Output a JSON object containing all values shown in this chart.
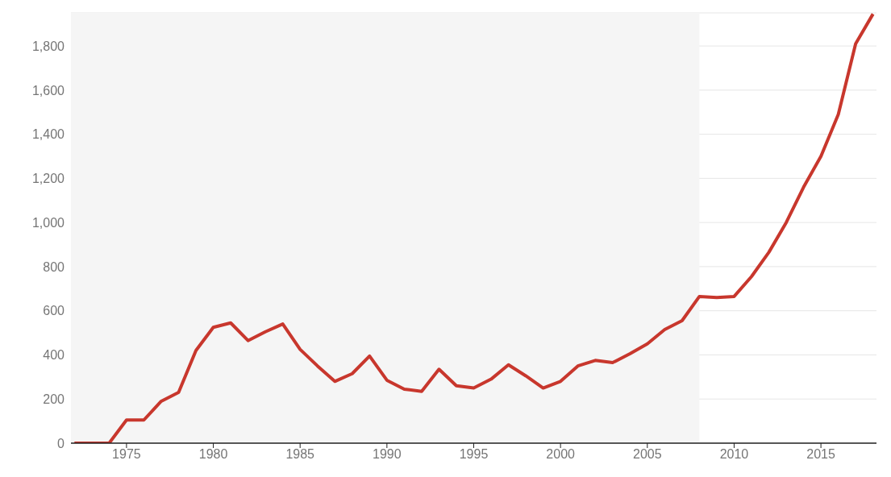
{
  "chart_data": {
    "type": "line",
    "x": [
      1972,
      1973,
      1974,
      1975,
      1976,
      1977,
      1978,
      1979,
      1980,
      1981,
      1982,
      1983,
      1984,
      1985,
      1986,
      1987,
      1988,
      1989,
      1990,
      1991,
      1992,
      1993,
      1994,
      1995,
      1996,
      1997,
      1998,
      1999,
      2000,
      2001,
      2002,
      2003,
      2004,
      2005,
      2006,
      2007,
      2008,
      2009,
      2010,
      2011,
      2012,
      2013,
      2014,
      2015,
      2016,
      2017,
      2018
    ],
    "series": [
      {
        "color": "#c8372d",
        "values": [
          0,
          0,
          0,
          105,
          105,
          190,
          230,
          420,
          525,
          545,
          465,
          505,
          540,
          425,
          350,
          280,
          315,
          395,
          285,
          245,
          235,
          335,
          260,
          250,
          290,
          355,
          305,
          250,
          280,
          350,
          375,
          365,
          405,
          450,
          515,
          555,
          665,
          660,
          665,
          755,
          865,
          1000,
          1160,
          1300,
          1490,
          1810,
          1945
        ]
      }
    ],
    "xlim": [
      1971.8,
      2018.2
    ],
    "xticks": [
      1975,
      1980,
      1985,
      1990,
      1995,
      2000,
      2005,
      2010,
      2015
    ],
    "ylim": [
      0,
      1950
    ],
    "yticks": [
      0,
      200,
      400,
      600,
      800,
      {
        "value": 1000,
        "label": "1,000"
      },
      {
        "value": 1200,
        "label": "1,200"
      },
      {
        "value": 1400,
        "label": "1,400"
      },
      {
        "value": 1600,
        "label": "1,600"
      },
      {
        "value": 1800,
        "label": "1,800"
      }
    ],
    "grid": "y",
    "marker": "none",
    "line_style": "solid",
    "bands": [
      {
        "axis": "x",
        "from": 1971.8,
        "to": 2008,
        "color": "#f5f5f5"
      }
    ]
  }
}
